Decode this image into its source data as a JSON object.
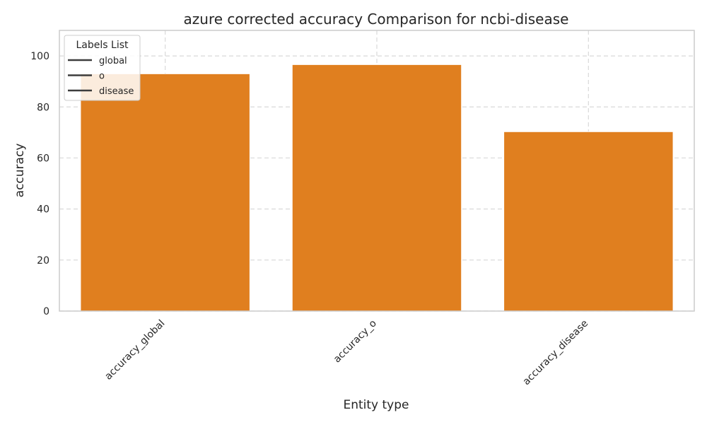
{
  "chart_data": {
    "type": "bar",
    "title": "azure corrected accuracy Comparison for ncbi-disease",
    "xlabel": "Entity type",
    "ylabel": "accuracy",
    "categories": [
      "accuracy_global",
      "accuracy_o",
      "accuracy_disease"
    ],
    "values": [
      93.0,
      96.6,
      70.3
    ],
    "ylim": [
      0,
      110
    ],
    "yticks": [
      0,
      20,
      40,
      60,
      80,
      100
    ],
    "grid": true,
    "bar_color": "#e07f1f",
    "legend": {
      "title": "Labels List",
      "placement": "top-left",
      "entries": [
        "global",
        "o",
        "disease"
      ]
    }
  }
}
